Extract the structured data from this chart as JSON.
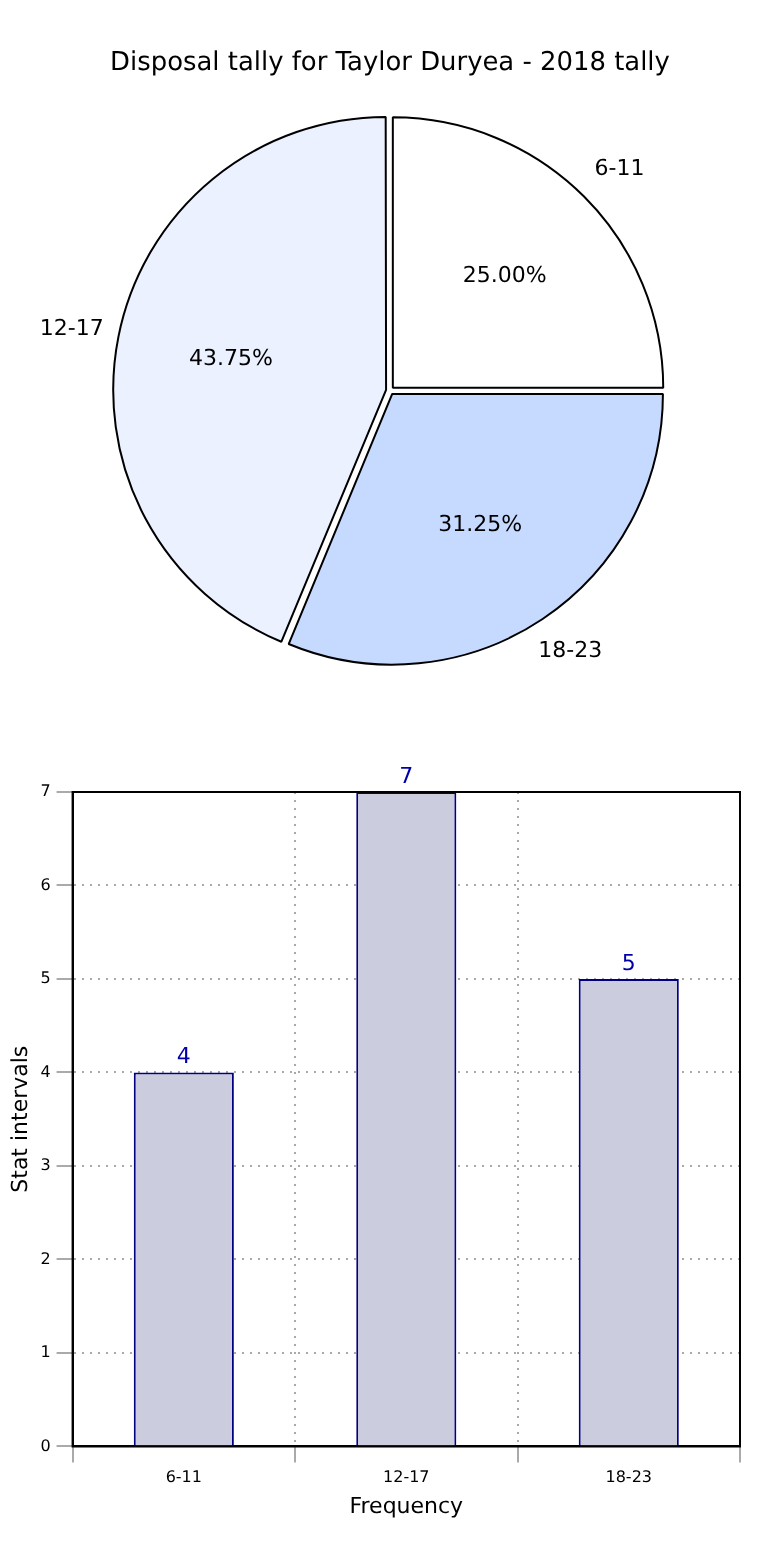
{
  "chart_data": [
    {
      "type": "pie",
      "title": "Disposal tally for Taylor Duryea - 2018 tally",
      "categories": [
        "6-11",
        "18-23",
        "12-17"
      ],
      "values": [
        25,
        31.25,
        43.75
      ],
      "colors": [
        "#ffffff",
        "#c6d9ff",
        "#ebf1fe"
      ],
      "value_labels": [
        "25.00%",
        "31.25%",
        "43.75%"
      ]
    },
    {
      "type": "bar",
      "categories": [
        "6-11",
        "12-17",
        "18-23"
      ],
      "values": [
        4,
        7,
        5
      ],
      "color": "#ccccdf",
      "ylim": [
        0,
        7
      ],
      "yticks": [
        0,
        1,
        2,
        3,
        4,
        5,
        6,
        7
      ],
      "grid": true,
      "data_labels": true,
      "xlabel": "Frequency",
      "ylabel": "Stat intervals"
    }
  ]
}
